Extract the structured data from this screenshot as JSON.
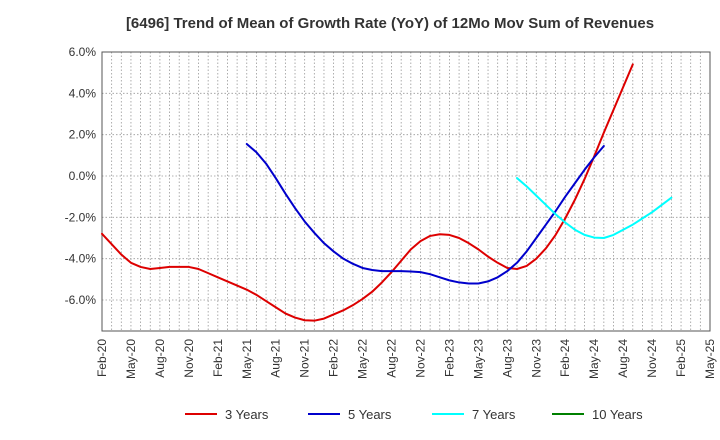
{
  "chart_data": {
    "type": "line",
    "title": "[6496]  Trend of Mean of Growth Rate (YoY) of 12Mo Mov Sum of Revenues",
    "xlabel": "",
    "ylabel": "",
    "ylim": [
      -7.5,
      6.0
    ],
    "y_ticks": [
      6.0,
      4.0,
      2.0,
      0.0,
      -2.0,
      -4.0,
      -6.0
    ],
    "y_tick_labels": [
      "6.0%",
      "4.0%",
      "2.0%",
      "0.0%",
      "-2.0%",
      "-4.0%",
      "-6.0%"
    ],
    "x_tick_labels": [
      "Feb-20",
      "May-20",
      "Aug-20",
      "Nov-20",
      "Feb-21",
      "May-21",
      "Aug-21",
      "Nov-21",
      "Feb-22",
      "May-22",
      "Aug-22",
      "Nov-22",
      "Feb-23",
      "May-23",
      "Aug-23",
      "Nov-23",
      "Feb-24",
      "May-24",
      "Aug-24",
      "Nov-24",
      "Feb-25",
      "May-25"
    ],
    "x_start": "Feb-20",
    "num_months": 64,
    "grid": true,
    "legend_position": "bottom",
    "series": [
      {
        "name": "3 Years",
        "color": "#dd0000",
        "start_index": 0,
        "values": [
          -2.8,
          -3.3,
          -3.8,
          -4.2,
          -4.4,
          -4.5,
          -4.45,
          -4.4,
          -4.4,
          -4.4,
          -4.5,
          -4.7,
          -4.9,
          -5.1,
          -5.3,
          -5.5,
          -5.75,
          -6.05,
          -6.35,
          -6.65,
          -6.85,
          -6.98,
          -7.0,
          -6.9,
          -6.7,
          -6.5,
          -6.25,
          -5.95,
          -5.6,
          -5.15,
          -4.65,
          -4.1,
          -3.55,
          -3.15,
          -2.9,
          -2.82,
          -2.85,
          -3.0,
          -3.25,
          -3.55,
          -3.9,
          -4.2,
          -4.45,
          -4.5,
          -4.35,
          -4.0,
          -3.5,
          -2.85,
          -2.05,
          -1.15,
          -0.15,
          0.95,
          2.1,
          3.2,
          4.3,
          5.4
        ]
      },
      {
        "name": "5 Years",
        "color": "#0000cc",
        "start_index": 15,
        "values": [
          1.55,
          1.15,
          0.6,
          -0.1,
          -0.85,
          -1.55,
          -2.2,
          -2.75,
          -3.25,
          -3.65,
          -4.0,
          -4.25,
          -4.45,
          -4.55,
          -4.6,
          -4.6,
          -4.6,
          -4.62,
          -4.65,
          -4.75,
          -4.9,
          -5.05,
          -5.15,
          -5.2,
          -5.2,
          -5.1,
          -4.9,
          -4.6,
          -4.2,
          -3.65,
          -3.0,
          -2.35,
          -1.7,
          -1.0,
          -0.35,
          0.3,
          0.9,
          1.45
        ]
      },
      {
        "name": "7 Years",
        "color": "#00ffff",
        "start_index": 43,
        "values": [
          -0.1,
          -0.5,
          -0.95,
          -1.4,
          -1.85,
          -2.25,
          -2.6,
          -2.85,
          -2.98,
          -3.0,
          -2.85,
          -2.6,
          -2.35,
          -2.05,
          -1.75,
          -1.4,
          -1.05
        ]
      },
      {
        "name": "10 Years",
        "color": "#008000",
        "start_index": 0,
        "values": []
      }
    ]
  }
}
